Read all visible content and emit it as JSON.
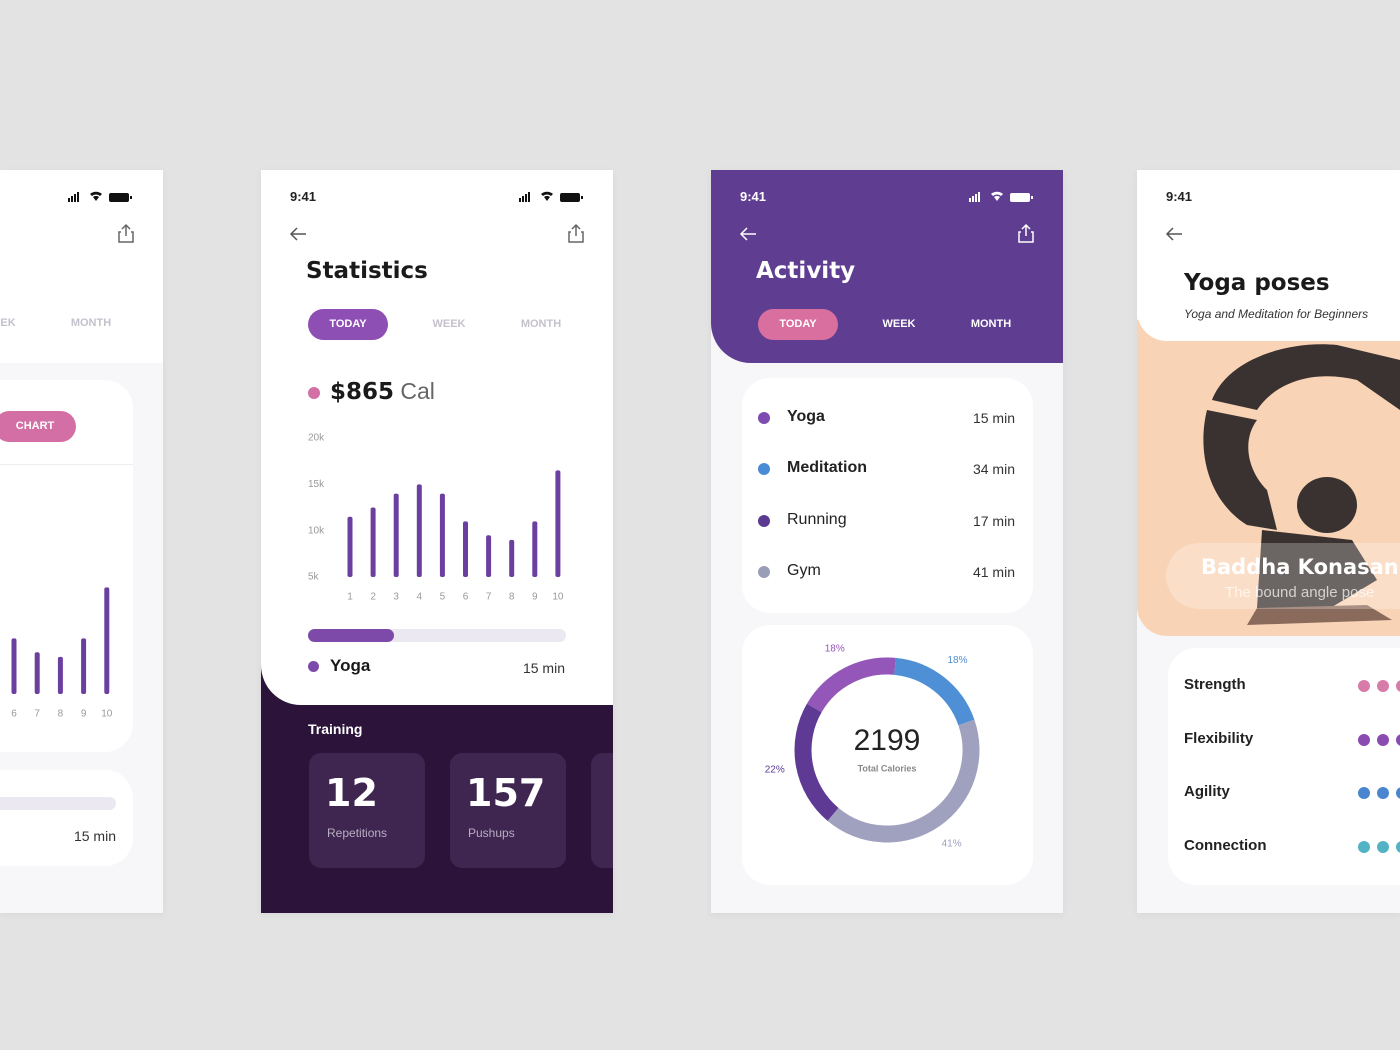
{
  "left_screen": {
    "tabs": [
      "EK",
      "MONTH"
    ],
    "button": "CHART",
    "item_duration": "15 min"
  },
  "statistics_screen": {
    "time": "9:41",
    "title": "Statistics",
    "tabs": [
      "TODAY",
      "WEEK",
      "MONTH"
    ],
    "amount": "$865",
    "unit": "Cal",
    "chart_data": {
      "type": "bar",
      "categories": [
        "1",
        "2",
        "3",
        "4",
        "5",
        "6",
        "7",
        "8",
        "9",
        "10"
      ],
      "values": [
        11500,
        12500,
        14000,
        15000,
        14000,
        11000,
        9500,
        9000,
        11000,
        16500
      ],
      "color": "#6b3fa0",
      "ylim": [
        5000,
        20000
      ],
      "yticks": [
        {
          "value": 20000,
          "label": "20k"
        },
        {
          "value": 15000,
          "label": "15k"
        },
        {
          "value": 10000,
          "label": "10k"
        },
        {
          "value": 5000,
          "label": "5k"
        }
      ]
    },
    "item": {
      "name": "Yoga",
      "duration": "15 min"
    },
    "training": {
      "title": "Training",
      "cards": [
        {
          "value": "12",
          "label": "Repetitions"
        },
        {
          "value": "157",
          "label": "Pushups"
        }
      ]
    }
  },
  "activity_screen": {
    "time": "9:41",
    "title": "Activity",
    "tabs": [
      "TODAY",
      "WEEK",
      "MONTH"
    ],
    "activities": [
      {
        "name": "Yoga",
        "duration": "15 min",
        "color": "#7e4bb0"
      },
      {
        "name": "Meditation",
        "duration": "34 min",
        "color": "#4a8bd6"
      },
      {
        "name": "Running",
        "duration": "17 min",
        "color": "#5b3a92"
      },
      {
        "name": "Gym",
        "duration": "41 min",
        "color": "#9a9db8"
      }
    ],
    "chart_data": {
      "type": "donut",
      "center_value": 2199,
      "center_label": "Total Calories",
      "values": [
        18,
        18,
        41,
        22
      ],
      "value_labels": [
        "18%",
        "18%",
        "41%",
        "22%"
      ],
      "colors": [
        "#9456b8",
        "#4e8fd6",
        "#9fa1bf",
        "#5e3a95"
      ]
    }
  },
  "yoga_screen": {
    "time": "9:41",
    "title": "Yoga poses",
    "subtitle": "Yoga and Meditation for Beginners",
    "pose_name": "Baddha Konasan",
    "pose_subtitle": "The bound angle pose",
    "attributes": [
      "Strength",
      "Flexibility",
      "Agility",
      "Connection"
    ]
  }
}
